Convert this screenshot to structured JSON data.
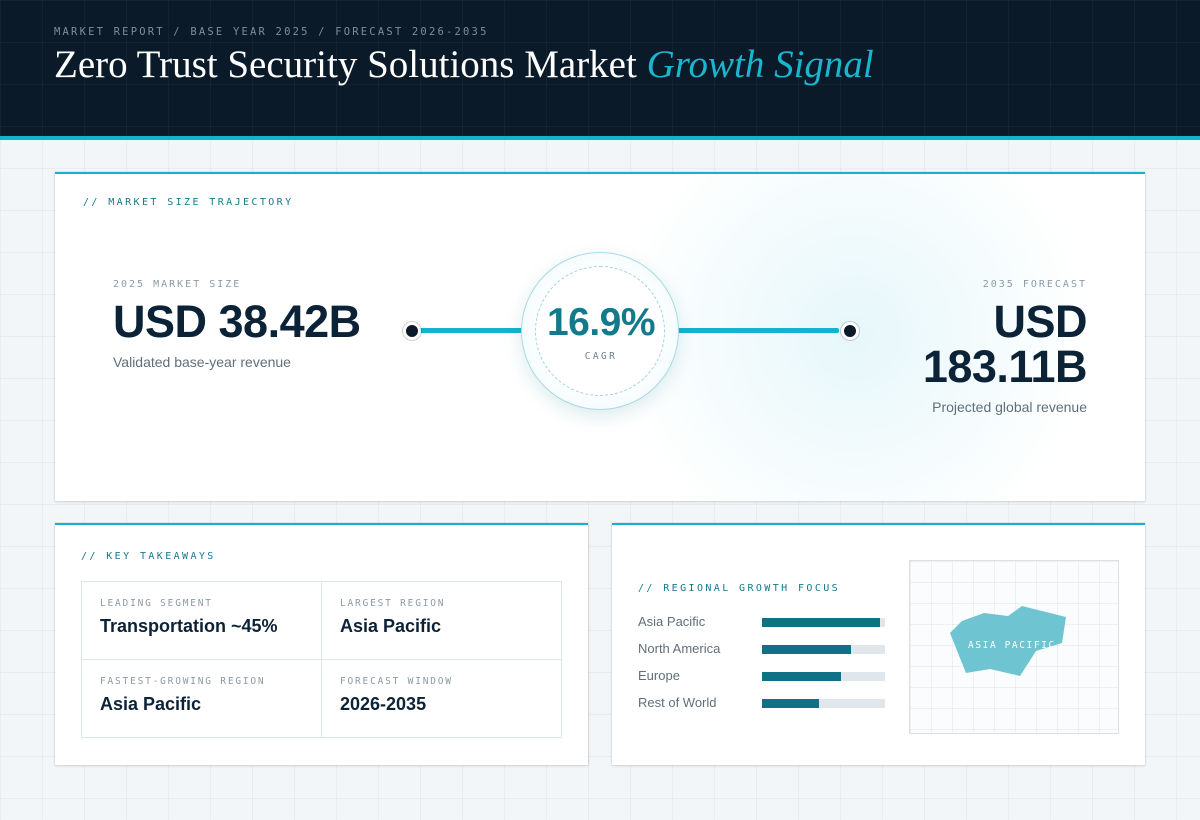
{
  "header": {
    "breadcrumb": "MARKET REPORT / BASE YEAR 2025 / FORECAST 2026-2035",
    "title_main": "Zero Trust Security Solutions Market ",
    "title_accent": "Growth Signal"
  },
  "trajectory": {
    "section_label": "// MARKET SIZE TRAJECTORY",
    "base": {
      "caption": "2025 MARKET SIZE",
      "value": "USD 38.42B",
      "sub": "Validated base-year revenue"
    },
    "cagr": {
      "value": "16.9%",
      "label": "CAGR"
    },
    "forecast": {
      "caption": "2035 FORECAST",
      "value": "USD 183.11B",
      "sub": "Projected global revenue"
    }
  },
  "takeaways": {
    "section_label": "// KEY TAKEAWAYS",
    "items": [
      {
        "label": "LEADING SEGMENT",
        "value": "Transportation ~45%"
      },
      {
        "label": "LARGEST REGION",
        "value": "Asia Pacific"
      },
      {
        "label": "FASTEST-GROWING REGION",
        "value": "Asia Pacific"
      },
      {
        "label": "FORECAST WINDOW",
        "value": "2026-2035"
      }
    ]
  },
  "regional": {
    "section_label": "// REGIONAL GROWTH FOCUS",
    "regions": [
      {
        "name": "Asia Pacific",
        "share": 0.96
      },
      {
        "name": "North America",
        "share": 0.72
      },
      {
        "name": "Europe",
        "share": 0.64
      },
      {
        "name": "Rest of World",
        "share": 0.46
      }
    ],
    "map_label": "ASIA PACIFIC"
  },
  "colors": {
    "accent": "#12b3cf",
    "accent_dark": "#137a8c",
    "bar": "#0e7185",
    "header_bg": "#0a1a28",
    "map_region": "#6fc4d2"
  }
}
